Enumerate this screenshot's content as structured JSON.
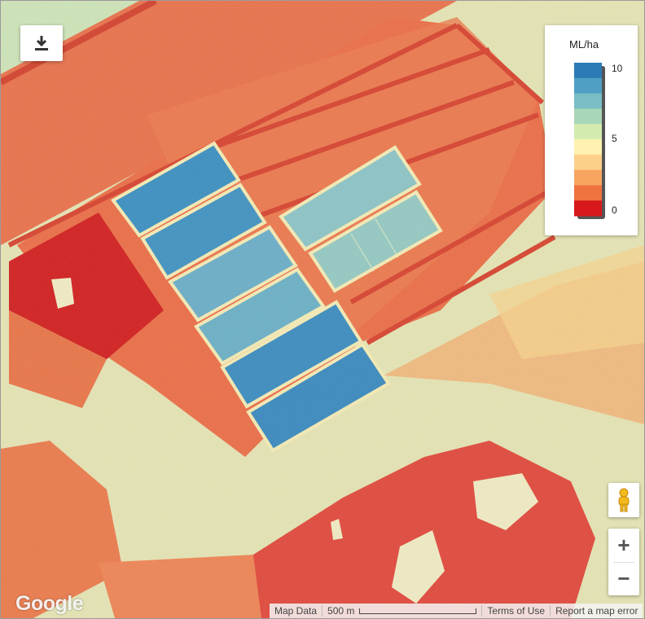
{
  "map": {
    "basemap": "satellite-water-use-overlay",
    "brand": "Google"
  },
  "legend": {
    "title": "ML/ha",
    "max_label": "10",
    "mid_label": "5",
    "min_label": "0",
    "colors": [
      "#2c7bb6",
      "#4f9fc4",
      "#79bdc5",
      "#a8d6b8",
      "#d4ebb0",
      "#fff2b0",
      "#fdd08a",
      "#f8a560",
      "#ee7340",
      "#d7191c"
    ]
  },
  "controls": {
    "download_icon": "download-icon",
    "pegman_icon": "pegman-icon",
    "zoom_in_label": "+",
    "zoom_out_label": "−"
  },
  "attribution": {
    "map_data": "Map Data",
    "scale_label": "500 m",
    "terms": "Terms of Use",
    "report": "Report a map error"
  }
}
